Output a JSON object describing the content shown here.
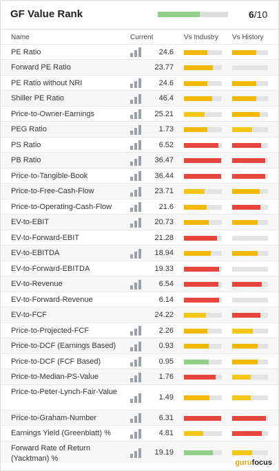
{
  "header": {
    "title": "GF Value Rank",
    "score": "6",
    "score_max": "/10",
    "rank_fraction": 0.6
  },
  "columns": {
    "name": "Name",
    "current": "Current",
    "industry": "Vs Industry",
    "history": "Vs History"
  },
  "colors": {
    "green": "#8fcf86",
    "yellow": "#f5c518",
    "orange": "#f5b800",
    "red": "#e8453c",
    "track": "#e3e3e3"
  },
  "rows": [
    {
      "name": "PE Ratio",
      "value": "24.6",
      "chart": true,
      "industry": {
        "level": 0.62,
        "color": "orange"
      },
      "history": {
        "level": 0.68,
        "color": "orange"
      }
    },
    {
      "name": "Forward PE Ratio",
      "value": "23.77",
      "chart": false,
      "industry": {
        "level": 0.76,
        "color": "orange"
      },
      "history": null
    },
    {
      "name": "PE Ratio without NRI",
      "value": "24.6",
      "chart": true,
      "industry": {
        "level": 0.62,
        "color": "orange"
      },
      "history": {
        "level": 0.68,
        "color": "orange"
      }
    },
    {
      "name": "Shiller PE Ratio",
      "value": "46.4",
      "chart": true,
      "industry": {
        "level": 0.74,
        "color": "orange"
      },
      "history": {
        "level": 0.68,
        "color": "orange"
      }
    },
    {
      "name": "Price-to-Owner-Earnings",
      "value": "25.21",
      "chart": true,
      "industry": {
        "level": 0.55,
        "color": "yellow"
      },
      "history": {
        "level": 0.76,
        "color": "orange"
      }
    },
    {
      "name": "PEG Ratio",
      "value": "1.73",
      "chart": true,
      "industry": {
        "level": 0.62,
        "color": "orange"
      },
      "history": {
        "level": 0.56,
        "color": "yellow"
      }
    },
    {
      "name": "PS Ratio",
      "value": "6.52",
      "chart": true,
      "industry": {
        "level": 0.9,
        "color": "red"
      },
      "history": {
        "level": 0.8,
        "color": "red"
      }
    },
    {
      "name": "PB Ratio",
      "value": "36.47",
      "chart": true,
      "industry": {
        "level": 0.98,
        "color": "red"
      },
      "history": {
        "level": 0.92,
        "color": "red"
      }
    },
    {
      "name": "Price-to-Tangible-Book",
      "value": "36.44",
      "chart": true,
      "industry": {
        "level": 0.98,
        "color": "red"
      },
      "history": {
        "level": 0.92,
        "color": "red"
      }
    },
    {
      "name": "Price-to-Free-Cash-Flow",
      "value": "23.71",
      "chart": true,
      "industry": {
        "level": 0.55,
        "color": "yellow"
      },
      "history": {
        "level": 0.76,
        "color": "orange"
      }
    },
    {
      "name": "Price-to-Operating-Cash-Flow",
      "value": "21.6",
      "chart": true,
      "industry": {
        "level": 0.6,
        "color": "orange"
      },
      "history": {
        "level": 0.78,
        "color": "red"
      }
    },
    {
      "name": "EV-to-EBIT",
      "value": "20.73",
      "chart": true,
      "industry": {
        "level": 0.65,
        "color": "orange"
      },
      "history": {
        "level": 0.72,
        "color": "orange"
      }
    },
    {
      "name": "EV-to-Forward-EBIT",
      "value": "21.28",
      "chart": false,
      "industry": {
        "level": 0.88,
        "color": "red"
      },
      "history": null
    },
    {
      "name": "EV-to-EBITDA",
      "value": "18.94",
      "chart": true,
      "industry": {
        "level": 0.7,
        "color": "orange"
      },
      "history": {
        "level": 0.72,
        "color": "orange"
      }
    },
    {
      "name": "EV-to-Forward-EBITDA",
      "value": "19.33",
      "chart": false,
      "industry": {
        "level": 0.92,
        "color": "red"
      },
      "history": null
    },
    {
      "name": "EV-to-Revenue",
      "value": "6.54",
      "chart": true,
      "industry": {
        "level": 0.9,
        "color": "red"
      },
      "history": {
        "level": 0.82,
        "color": "red"
      }
    },
    {
      "name": "EV-to-Forward-Revenue",
      "value": "6.14",
      "chart": false,
      "industry": {
        "level": 0.92,
        "color": "red"
      },
      "history": null
    },
    {
      "name": "EV-to-FCF",
      "value": "24.22",
      "chart": false,
      "industry": {
        "level": 0.58,
        "color": "yellow"
      },
      "history": {
        "level": 0.78,
        "color": "red"
      }
    },
    {
      "name": "Price-to-Projected-FCF",
      "value": "2.26",
      "chart": true,
      "industry": {
        "level": 0.62,
        "color": "orange"
      },
      "history": {
        "level": 0.58,
        "color": "yellow"
      }
    },
    {
      "name": "Price-to-DCF (Earnings Based)",
      "value": "0.93",
      "chart": true,
      "industry": {
        "level": 0.66,
        "color": "orange"
      },
      "history": {
        "level": 0.72,
        "color": "orange"
      }
    },
    {
      "name": "Price-to-DCF (FCF Based)",
      "value": "0.95",
      "chart": true,
      "industry": {
        "level": 0.65,
        "color": "green"
      },
      "history": {
        "level": 0.72,
        "color": "orange"
      }
    },
    {
      "name": "Price-to-Median-PS-Value",
      "value": "1.76",
      "chart": true,
      "industry": {
        "level": 0.84,
        "color": "red"
      },
      "history": {
        "level": 0.52,
        "color": "yellow"
      }
    },
    {
      "name": "Price-to-Peter-Lynch-Fair-Value",
      "value": "1.49",
      "chart": true,
      "industry": {
        "level": 0.68,
        "color": "orange"
      },
      "history": {
        "level": 0.52,
        "color": "yellow"
      }
    },
    {
      "name": "Price-to-Graham-Number",
      "value": "6.31",
      "chart": true,
      "industry": {
        "level": 0.98,
        "color": "red"
      },
      "history": {
        "level": 0.94,
        "color": "red"
      }
    },
    {
      "name": "Earnings Yield (Greenblatt) %",
      "value": "4.81",
      "chart": true,
      "industry": {
        "level": 0.5,
        "color": "yellow"
      },
      "history": {
        "level": 0.82,
        "color": "red"
      }
    },
    {
      "name": "Forward Rate of Return (Yacktman) %",
      "value": "19.19",
      "chart": true,
      "industry": {
        "level": 0.76,
        "color": "green"
      },
      "history": {
        "level": 0.55,
        "color": "yellow"
      }
    }
  ],
  "logo": {
    "prefix": "guru",
    "suffix": "focus"
  }
}
